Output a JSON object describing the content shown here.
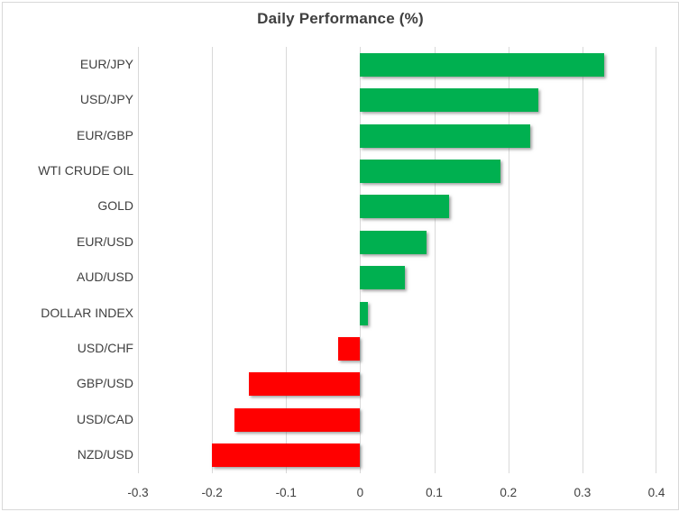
{
  "chart_data": {
    "type": "bar",
    "orientation": "horizontal",
    "title": "Daily Performance (%)",
    "categories": [
      "EUR/JPY",
      "USD/JPY",
      "EUR/GBP",
      "WTI CRUDE OIL",
      "GOLD",
      "EUR/USD",
      "AUD/USD",
      "DOLLAR INDEX",
      "USD/CHF",
      "GBP/USD",
      "USD/CAD",
      "NZD/USD"
    ],
    "values": [
      0.33,
      0.24,
      0.23,
      0.19,
      0.12,
      0.09,
      0.06,
      0.01,
      -0.03,
      -0.15,
      -0.17,
      -0.2
    ],
    "xlabel": "",
    "ylabel": "",
    "xlim": [
      -0.3,
      0.4
    ],
    "x_ticks": [
      -0.3,
      -0.2,
      -0.1,
      0,
      0.1,
      0.2,
      0.3,
      0.4
    ],
    "x_tick_labels": [
      "-0.3",
      "-0.2",
      "-0.1",
      "0",
      "0.1",
      "0.2",
      "0.3",
      "0.4"
    ],
    "grid": "vertical-on",
    "legend": "none",
    "colors": {
      "positive_bar": "#00B050",
      "negative_bar": "#FF0000",
      "gridline": "#D9D9D9",
      "text": "#404040",
      "border": "#D9D9D9",
      "background": "#FFFFFF"
    }
  }
}
